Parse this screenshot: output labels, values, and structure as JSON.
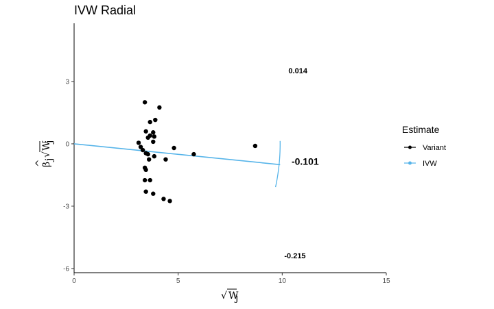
{
  "chart_data": {
    "type": "scatter",
    "title": "IVW Radial",
    "xlabel": "√W_j",
    "ylabel": "β̂_j √W_j",
    "xlim": [
      0,
      15
    ],
    "ylim": [
      -6.2,
      5.8
    ],
    "x_ticks": [
      0,
      5,
      10,
      15
    ],
    "y_ticks": [
      3,
      0,
      -3,
      -6
    ],
    "x_tick_labels": [
      "0",
      "5",
      "10",
      "15"
    ],
    "y_tick_labels": [
      "3",
      "0",
      "-3",
      "-6"
    ],
    "grid": false,
    "legend": {
      "title": "Estimate",
      "placement": "right",
      "items": [
        {
          "label": "Variant",
          "color": "#000000",
          "marker": "point"
        },
        {
          "label": "IVW",
          "color": "#56B4E9",
          "marker": "point"
        }
      ]
    },
    "series": [
      {
        "name": "Variant",
        "color": "#000000",
        "points": [
          [
            3.4,
            2.0
          ],
          [
            4.1,
            1.75
          ],
          [
            3.9,
            1.15
          ],
          [
            3.65,
            1.05
          ],
          [
            3.45,
            0.6
          ],
          [
            3.8,
            0.55
          ],
          [
            3.65,
            0.4
          ],
          [
            3.85,
            0.35
          ],
          [
            3.55,
            0.3
          ],
          [
            3.8,
            0.1
          ],
          [
            3.1,
            0.05
          ],
          [
            3.2,
            -0.15
          ],
          [
            3.3,
            -0.3
          ],
          [
            3.45,
            -0.45
          ],
          [
            3.55,
            -0.5
          ],
          [
            3.85,
            -0.6
          ],
          [
            3.6,
            -0.75
          ],
          [
            4.4,
            -0.75
          ],
          [
            4.8,
            -0.2
          ],
          [
            5.75,
            -0.5
          ],
          [
            8.7,
            -0.1
          ],
          [
            3.4,
            -1.15
          ],
          [
            3.45,
            -1.25
          ],
          [
            3.4,
            -1.75
          ],
          [
            3.65,
            -1.75
          ],
          [
            3.45,
            -2.3
          ],
          [
            3.8,
            -2.4
          ],
          [
            4.3,
            -2.65
          ],
          [
            4.6,
            -2.75
          ]
        ]
      },
      {
        "name": "IVW",
        "color": "#56B4E9",
        "type": "line",
        "x": [
          0,
          9.9
        ],
        "y": [
          0,
          -1.0
        ]
      }
    ],
    "arc": {
      "color": "#56B4E9",
      "center_x": 0,
      "center_y": 0,
      "radius": 9.9,
      "from_slope": 0.014,
      "to_slope": -0.215
    },
    "annotations": [
      {
        "text": "0.014",
        "x": 10.3,
        "y": 3.4,
        "style": "small"
      },
      {
        "text": "-0.101",
        "x": 10.45,
        "y": -1.0,
        "style": "main"
      },
      {
        "text": "-0.215",
        "x": 10.1,
        "y": -5.5,
        "style": "small"
      }
    ]
  }
}
